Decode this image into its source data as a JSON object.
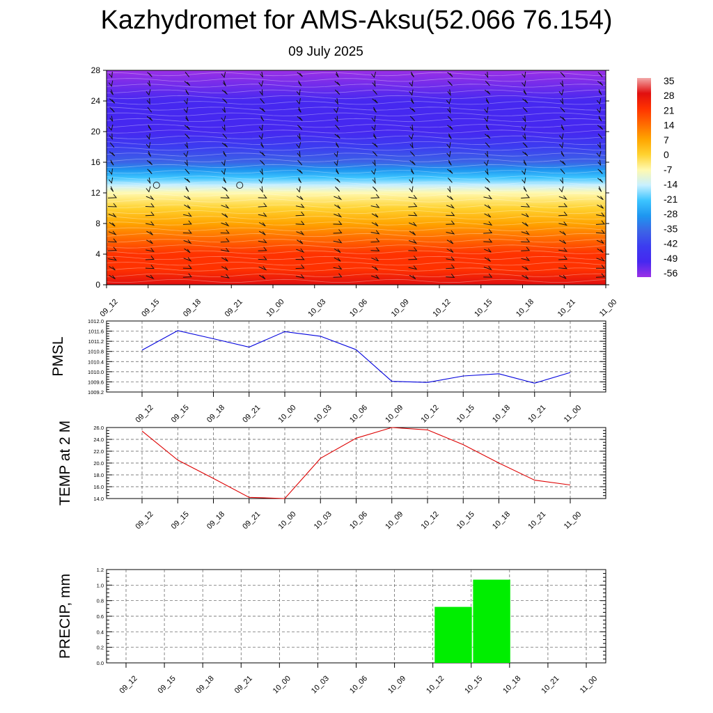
{
  "header": {
    "title": "Kazhydromet for AMS-Aksu(52.066 76.154)",
    "subtitle": "09 July 2025"
  },
  "chart_data": [
    {
      "type": "heatmap",
      "title": "",
      "xlabel": "",
      "ylabel": "",
      "x": [
        "09_12",
        "09_15",
        "09_18",
        "09_21",
        "10_00",
        "10_03",
        "10_06",
        "10_09",
        "10_12",
        "10_15",
        "10_18",
        "10_21",
        "11_00"
      ],
      "yticks": [
        "0",
        "4",
        "8",
        "12",
        "16",
        "20",
        "24",
        "28"
      ],
      "ylim": [
        0,
        28
      ],
      "colorbar": {
        "labels": [
          "35",
          "28",
          "21",
          "14",
          "7",
          "0",
          "-7",
          "-14",
          "-21",
          "-28",
          "-35",
          "-42",
          "-49",
          "-56"
        ],
        "colors": [
          "#f2a8a8",
          "#e10f0f",
          "#ff3200",
          "#ff6a00",
          "#ffa500",
          "#ffd230",
          "#fff9b0",
          "#c8f0ff",
          "#3cc4ff",
          "#1e96f0",
          "#3c64e6",
          "#3c3cf0",
          "#4628f0",
          "#9b30e6"
        ]
      },
      "profile": [
        {
          "level": 0,
          "temp": 26
        },
        {
          "level": 2,
          "temp": 22
        },
        {
          "level": 4,
          "temp": 18
        },
        {
          "level": 6,
          "temp": 12
        },
        {
          "level": 8,
          "temp": 6
        },
        {
          "level": 10,
          "temp": 0
        },
        {
          "level": 12,
          "temp": -6
        },
        {
          "level": 13,
          "temp": -14
        },
        {
          "level": 14,
          "temp": -22
        },
        {
          "level": 15,
          "temp": -30
        },
        {
          "level": 16,
          "temp": -36
        },
        {
          "level": 18,
          "temp": -42
        },
        {
          "level": 20,
          "temp": -48
        },
        {
          "level": 24,
          "temp": -52
        },
        {
          "level": 28,
          "temp": -56
        }
      ],
      "calm_markers": [
        {
          "x": "09_15",
          "level": 13
        },
        {
          "x": "09_21",
          "level": 13
        }
      ]
    },
    {
      "type": "line",
      "ylabel": "PMSL",
      "x": [
        "09_12",
        "09_15",
        "09_18",
        "09_21",
        "10_00",
        "10_03",
        "10_06",
        "10_09",
        "10_12",
        "10_15",
        "10_18",
        "10_21",
        "11_00"
      ],
      "yticks": [
        "1009.2",
        "1009.6",
        "1010.0",
        "1010.4",
        "1010.8",
        "1011.2",
        "1011.6",
        "1012.0"
      ],
      "ylim": [
        1009.2,
        1012.0
      ],
      "series": [
        {
          "values": [
            1010.85,
            1011.62,
            1011.3,
            1010.97,
            1011.58,
            1011.4,
            1010.87,
            1009.62,
            1009.58,
            1009.83,
            1009.92,
            1009.55,
            1009.97
          ],
          "color": "#0000dd"
        }
      ]
    },
    {
      "type": "line",
      "ylabel": "TEMP at 2 M",
      "x": [
        "09_12",
        "09_15",
        "09_18",
        "09_21",
        "10_00",
        "10_03",
        "10_06",
        "10_09",
        "10_12",
        "10_15",
        "10_18",
        "10_21",
        "11_00"
      ],
      "yticks": [
        "14.0",
        "16.0",
        "18.0",
        "20.0",
        "22.0",
        "24.0",
        "26.0"
      ],
      "ylim": [
        14.0,
        26.0
      ],
      "series": [
        {
          "values": [
            25.4,
            20.5,
            17.4,
            14.2,
            14.0,
            20.8,
            24.2,
            26.0,
            25.6,
            23.1,
            20.0,
            17.1,
            16.3
          ],
          "color": "#dd0000"
        }
      ]
    },
    {
      "type": "bar",
      "ylabel": "PRECIP, mm",
      "x": [
        "09_12",
        "09_15",
        "09_18",
        "09_21",
        "10_00",
        "10_03",
        "10_06",
        "10_09",
        "10_12",
        "10_15",
        "10_18",
        "10_21",
        "11_00"
      ],
      "yticks": [
        "0.0",
        "0.2",
        "0.4",
        "0.6",
        "0.8",
        "1.0",
        "1.2"
      ],
      "ylim": [
        0,
        1.2
      ],
      "values": [
        0,
        0,
        0,
        0,
        0,
        0,
        0,
        0,
        0,
        0.72,
        1.07,
        0,
        0
      ],
      "color": "#00ee00"
    }
  ]
}
